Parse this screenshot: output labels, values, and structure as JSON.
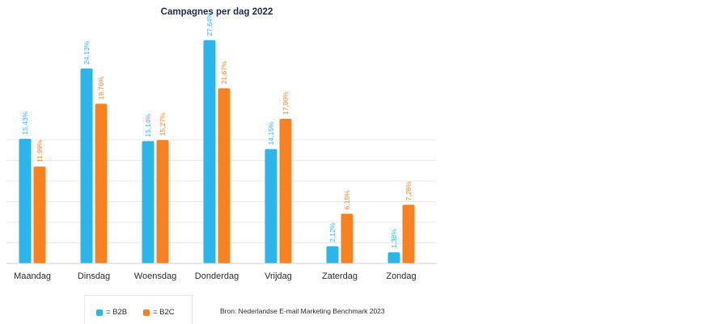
{
  "chart_data": {
    "type": "bar",
    "title": "Campagnes per dag 2022",
    "categories": [
      "Maandag",
      "Dinsdag",
      "Woensdag",
      "Donderdag",
      "Vrijdag",
      "Zaterdag",
      "Zondag"
    ],
    "series": [
      {
        "name": "B2B",
        "color": "#2bb5ea",
        "values": [
          15.43,
          24.13,
          15.14,
          27.64,
          14.15,
          2.12,
          1.38
        ],
        "labels": [
          "15,43%",
          "24,13%",
          "15,14%",
          "27,64%",
          "14,15%",
          "2,12%",
          "1,38%"
        ]
      },
      {
        "name": "B2C",
        "color": "#f78222",
        "values": [
          11.99,
          19.76,
          15.27,
          21.67,
          17.9,
          6.15,
          7.26
        ],
        "labels": [
          "11,99%",
          "19,76%",
          "15,27%",
          "21,67%",
          "17,90%",
          "6,15%",
          "7,26%"
        ]
      }
    ],
    "ylim": [
      0,
      30
    ],
    "gridlines": [
      2.55,
      5.1,
      7.65,
      10.2,
      12.75,
      15.3
    ],
    "xlabel": "",
    "ylabel": "",
    "legend_position": "bottom-left"
  },
  "legend": {
    "b2b_label": "= B2B",
    "b2c_label": "= B2C"
  },
  "source": "Bron: Nederlandse E-mail Marketing Benchmark 2023"
}
